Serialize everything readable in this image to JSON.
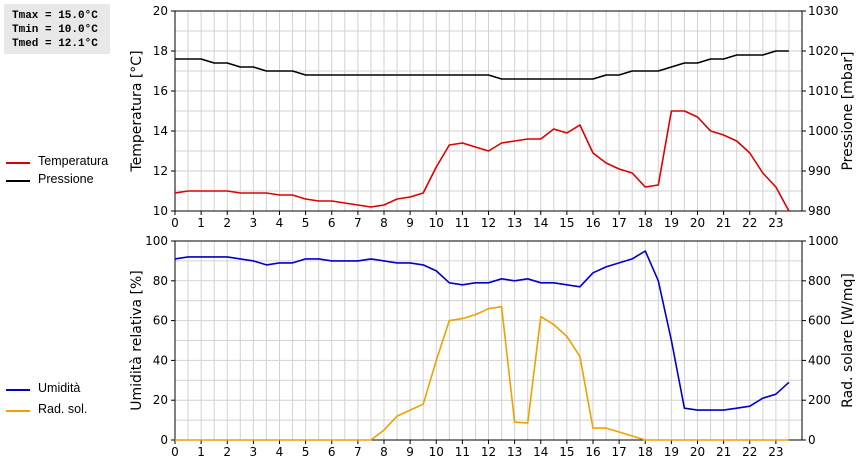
{
  "stats": {
    "tmax": "Tmax = 15.0°C",
    "tmin": "Tmin = 10.0°C",
    "tmed": "Tmed = 12.1°C"
  },
  "colors": {
    "temperatura": "#dd0000",
    "pressione": "#000000",
    "umidita": "#0000cc",
    "rad": "#f0a000",
    "grid": "#d2d2d2"
  },
  "chart_data": [
    {
      "type": "line",
      "title": "",
      "xlabel": "",
      "ylabel": "Temperatura [°C]",
      "ylabel_right": "Pressione [mbar]",
      "xlim": [
        0,
        24
      ],
      "xticks": [
        0,
        1,
        2,
        3,
        4,
        5,
        6,
        7,
        8,
        9,
        10,
        11,
        12,
        13,
        14,
        15,
        16,
        17,
        18,
        19,
        20,
        21,
        22,
        23
      ],
      "ylim": [
        10,
        20
      ],
      "yticks": [
        10,
        12,
        14,
        16,
        18,
        20
      ],
      "ylim_right": [
        980,
        1030
      ],
      "yticks_right": [
        980,
        990,
        1000,
        1010,
        1020,
        1030
      ],
      "grid": true,
      "legend": "left",
      "series": [
        {
          "name": "Temperatura",
          "axis": "left",
          "color": "#dd0000",
          "x": [
            0,
            0.5,
            1,
            1.5,
            2,
            2.5,
            3,
            3.5,
            4,
            4.5,
            5,
            5.5,
            6,
            6.5,
            7,
            7.5,
            8,
            8.5,
            9,
            9.5,
            10,
            10.5,
            11,
            11.5,
            12,
            12.5,
            13,
            13.5,
            14,
            14.5,
            15,
            15.5,
            16,
            16.5,
            17,
            17.5,
            18,
            18.5,
            19,
            19.5,
            20,
            20.5,
            21,
            21.5,
            22,
            22.5,
            23,
            23.5
          ],
          "values": [
            10.9,
            11.0,
            11.0,
            11.0,
            11.0,
            10.9,
            10.9,
            10.9,
            10.8,
            10.8,
            10.6,
            10.5,
            10.5,
            10.4,
            10.3,
            10.2,
            10.3,
            10.6,
            10.7,
            10.9,
            12.2,
            13.3,
            13.4,
            13.2,
            13.0,
            13.4,
            13.5,
            13.6,
            13.6,
            14.1,
            13.9,
            14.3,
            12.9,
            12.4,
            12.1,
            11.9,
            11.2,
            11.3,
            15.0,
            15.0,
            14.7,
            14.0,
            13.8,
            13.5,
            12.9,
            11.9,
            11.2,
            10.0
          ]
        },
        {
          "name": "Pressione",
          "axis": "right",
          "color": "#000000",
          "x": [
            0,
            0.5,
            1,
            1.5,
            2,
            2.5,
            3,
            3.5,
            4,
            4.5,
            5,
            5.5,
            6,
            6.5,
            7,
            7.5,
            8,
            8.5,
            9,
            9.5,
            10,
            10.5,
            11,
            11.5,
            12,
            12.5,
            13,
            13.5,
            14,
            14.5,
            15,
            15.5,
            16,
            16.5,
            17,
            17.5,
            18,
            18.5,
            19,
            19.5,
            20,
            20.5,
            21,
            21.5,
            22,
            22.5,
            23,
            23.5
          ],
          "values": [
            1018,
            1018,
            1018,
            1017,
            1017,
            1016,
            1016,
            1015,
            1015,
            1015,
            1014,
            1014,
            1014,
            1014,
            1014,
            1014,
            1014,
            1014,
            1014,
            1014,
            1014,
            1014,
            1014,
            1014,
            1014,
            1013,
            1013,
            1013,
            1013,
            1013,
            1013,
            1013,
            1013,
            1014,
            1014,
            1015,
            1015,
            1015,
            1016,
            1017,
            1017,
            1018,
            1018,
            1019,
            1019,
            1019,
            1020,
            1020
          ]
        }
      ]
    },
    {
      "type": "line",
      "title": "",
      "xlabel": "",
      "ylabel": "Umidità relativa [%]",
      "ylabel_right": "Rad. solare [W/mq]",
      "xlim": [
        0,
        24
      ],
      "xticks": [
        0,
        1,
        2,
        3,
        4,
        5,
        6,
        7,
        8,
        9,
        10,
        11,
        12,
        13,
        14,
        15,
        16,
        17,
        18,
        19,
        20,
        21,
        22,
        23
      ],
      "ylim": [
        0,
        100
      ],
      "yticks": [
        0,
        20,
        40,
        60,
        80,
        100
      ],
      "ylim_right": [
        0,
        1000
      ],
      "yticks_right": [
        0,
        200,
        400,
        600,
        800,
        1000
      ],
      "grid": true,
      "legend": "left",
      "series": [
        {
          "name": "Umidità",
          "axis": "left",
          "color": "#0000cc",
          "x": [
            0,
            0.5,
            1,
            1.5,
            2,
            2.5,
            3,
            3.5,
            4,
            4.5,
            5,
            5.5,
            6,
            6.5,
            7,
            7.5,
            8,
            8.5,
            9,
            9.5,
            10,
            10.5,
            11,
            11.5,
            12,
            12.5,
            13,
            13.5,
            14,
            14.5,
            15,
            15.5,
            16,
            16.5,
            17,
            17.5,
            18,
            18.5,
            19,
            19.5,
            20,
            20.5,
            21,
            21.5,
            22,
            22.5,
            23,
            23.5
          ],
          "values": [
            91,
            92,
            92,
            92,
            92,
            91,
            90,
            88,
            89,
            89,
            91,
            91,
            90,
            90,
            90,
            91,
            90,
            89,
            89,
            88,
            85,
            79,
            78,
            79,
            79,
            81,
            80,
            81,
            79,
            79,
            78,
            77,
            84,
            87,
            89,
            91,
            95,
            80,
            50,
            16,
            15,
            15,
            15,
            16,
            17,
            21,
            23,
            29
          ]
        },
        {
          "name": "Rad. sol.",
          "axis": "right",
          "color": "#f0a000",
          "x": [
            0,
            0.5,
            1,
            1.5,
            2,
            2.5,
            3,
            3.5,
            4,
            4.5,
            5,
            5.5,
            6,
            6.5,
            7,
            7.5,
            8,
            8.5,
            9,
            9.5,
            10,
            10.5,
            11,
            11.5,
            12,
            12.5,
            13,
            13.5,
            14,
            14.5,
            15,
            15.5,
            16,
            16.5,
            17,
            17.5,
            18,
            18.5,
            19,
            19.5,
            20,
            20.5,
            21,
            21.5,
            22,
            22.5,
            23,
            23.5
          ],
          "values": [
            0,
            0,
            0,
            0,
            0,
            0,
            0,
            0,
            0,
            0,
            0,
            0,
            0,
            0,
            0,
            0,
            50,
            120,
            150,
            180,
            400,
            600,
            610,
            630,
            660,
            670,
            90,
            85,
            620,
            580,
            520,
            420,
            60,
            60,
            40,
            20,
            0,
            0,
            0,
            0,
            0,
            0,
            0,
            0,
            0,
            0,
            0,
            0
          ]
        }
      ]
    }
  ]
}
